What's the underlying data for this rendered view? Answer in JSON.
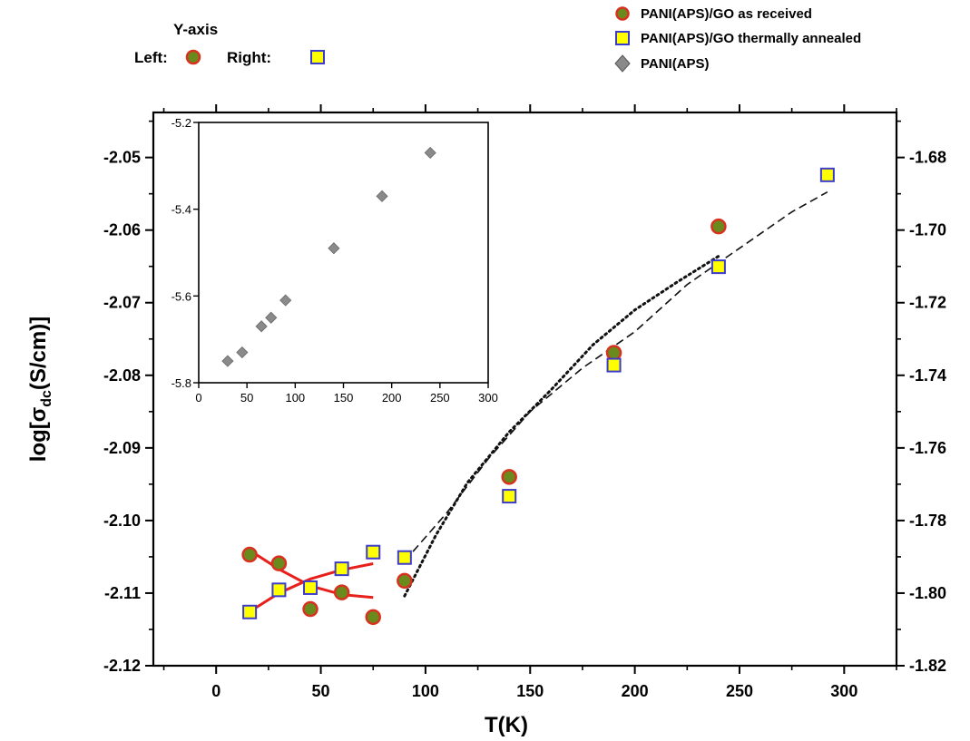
{
  "chart_data": [
    {
      "type": "scatter",
      "title": "",
      "xlabel": "T(K)",
      "ylabel_left_prefix": "log[σ",
      "ylabel_left_sub": "dc",
      "ylabel_left_suffix": "(S/cm)]",
      "xlim": [
        -30,
        325
      ],
      "ylim_left": [
        -2.12,
        -2.0438
      ],
      "ylim_right": [
        -1.82,
        -1.6676
      ],
      "x_ticks": [
        0,
        50,
        100,
        150,
        200,
        250,
        300
      ],
      "y_left_ticks": [
        -2.12,
        -2.11,
        -2.1,
        -2.09,
        -2.08,
        -2.07,
        -2.06,
        -2.05
      ],
      "y_right_ticks": [
        -1.82,
        -1.8,
        -1.78,
        -1.76,
        -1.74,
        -1.72,
        -1.7,
        -1.68
      ],
      "x_tick_labels": [
        "0",
        "50",
        "100",
        "150",
        "200",
        "250",
        "300"
      ],
      "y_left_tick_labels": [
        "-2.12",
        "-2.11",
        "-2.10",
        "-2.09",
        "-2.08",
        "-2.07",
        "-2.06",
        "-2.05"
      ],
      "y_right_tick_labels": [
        "-1.82",
        "-1.80",
        "-1.78",
        "-1.76",
        "-1.74",
        "-1.72",
        "-1.70",
        "-1.68"
      ],
      "axis_legend": {
        "title": "Y-axis",
        "left_label": "Left:",
        "right_label": "Right:"
      },
      "legend": [
        {
          "name": "PANI(APS)/GO as received",
          "marker": "circle"
        },
        {
          "name": "PANI(APS)/GO thermally annealed",
          "marker": "square"
        },
        {
          "name": "PANI(APS)",
          "marker": "diamond"
        }
      ],
      "series": [
        {
          "name": "PANI(APS)/GO as received",
          "axis": "left",
          "marker": "circle",
          "fill": "#6b8a1e",
          "stroke": "#d8321f",
          "x": [
            16,
            30,
            45,
            60,
            75,
            90,
            140,
            190,
            240
          ],
          "y": [
            -2.1047,
            -2.1059,
            -2.1122,
            -2.1099,
            -2.1133,
            -2.1083,
            -2.094,
            -2.0769,
            -2.0595
          ]
        },
        {
          "name": "PANI(APS)/GO thermally annealed",
          "axis": "right",
          "marker": "square",
          "fill": "#ffff00",
          "stroke": "#3c3ccc",
          "x": [
            16,
            30,
            45,
            60,
            75,
            90,
            140,
            190,
            240,
            292
          ],
          "y": [
            -1.8052,
            -1.7991,
            -1.7985,
            -1.7933,
            -1.7887,
            -1.7902,
            -1.7733,
            -1.7372,
            -1.7101,
            -1.6848
          ]
        }
      ],
      "fit_lines": [
        {
          "axis": "left",
          "style": "solid",
          "color": "#e8201c",
          "x": [
            16,
            30,
            45,
            60,
            75
          ],
          "y": [
            -2.1041,
            -2.1067,
            -2.109,
            -2.1102,
            -2.1106
          ]
        },
        {
          "axis": "right",
          "style": "solid",
          "color": "#e8201c",
          "x": [
            16,
            30,
            45,
            60,
            75
          ],
          "y": [
            -1.8051,
            -1.8,
            -1.7961,
            -1.7936,
            -1.7919
          ]
        },
        {
          "axis": "left",
          "style": "dotted",
          "color": "#111111",
          "x": [
            90,
            105,
            120,
            140,
            160,
            180,
            200,
            220,
            240
          ],
          "y": [
            -2.1104,
            -2.102,
            -2.0948,
            -2.0878,
            -2.082,
            -2.0758,
            -2.071,
            -2.0672,
            -2.0636
          ]
        },
        {
          "axis": "right",
          "style": "dashed",
          "color": "#111111",
          "x": [
            90,
            110,
            130,
            150,
            175,
            200,
            225,
            250,
            275,
            292
          ],
          "y": [
            -1.7912,
            -1.778,
            -1.763,
            -1.75,
            -1.738,
            -1.728,
            -1.715,
            -1.705,
            -1.695,
            -1.6895
          ]
        }
      ]
    },
    {
      "type": "scatter",
      "title": "",
      "xlabel": "",
      "ylabel": "",
      "xlim": [
        0,
        300
      ],
      "ylim": [
        -5.8,
        -5.2
      ],
      "x_ticks": [
        0,
        50,
        100,
        150,
        200,
        250,
        300
      ],
      "y_ticks": [
        -5.8,
        -5.6,
        -5.4,
        -5.2
      ],
      "x_tick_labels": [
        "0",
        "50",
        "100",
        "150",
        "200",
        "250",
        "300"
      ],
      "y_tick_labels": [
        "-5.8",
        "-5.6",
        "-5.4",
        "-5.2"
      ],
      "series": [
        {
          "name": "PANI(APS)",
          "marker": "diamond",
          "fill": "#8a8a8a",
          "x": [
            30,
            45,
            65,
            75,
            90,
            140,
            190,
            240
          ],
          "y": [
            -5.75,
            -5.73,
            -5.67,
            -5.65,
            -5.61,
            -5.49,
            -5.37,
            -5.27
          ]
        }
      ]
    }
  ]
}
